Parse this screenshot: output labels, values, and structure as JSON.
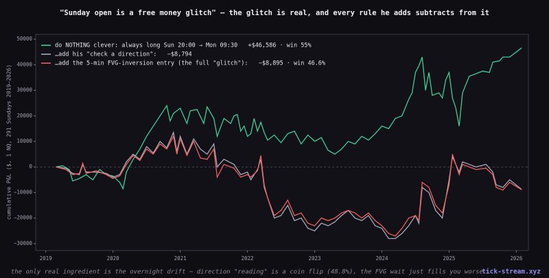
{
  "chart_data": {
    "type": "line",
    "title": "\"Sunday open is a free money glitch\" — the glitch is real, and every rule he adds subtracts from it",
    "ylabel": "cumulative P&L ($, 1 NQ, 291 Sundays 2019–2026)",
    "caption": "the only real ingredient is the overnight drift — direction \"reading\" is a coin flip (48.8%), the FVG wait just fills you worse",
    "brand": "tick-stream.xyz",
    "xlim": [
      2018.85,
      2026.18
    ],
    "xticks": [
      2019,
      2020,
      2021,
      2022,
      2023,
      2024,
      2025,
      2026
    ],
    "ylim": [
      -32700,
      51900
    ],
    "yticks": [
      {
        "value": -30000,
        "label": "−30000"
      },
      {
        "value": -20000,
        "label": "−20000"
      },
      {
        "value": -10000,
        "label": "−10000"
      },
      0,
      10000,
      20000,
      30000,
      40000,
      50000
    ],
    "legend": "upper left",
    "series": [
      {
        "name": "do NOTHING clever: always long Sun 20:00 → Mon 09:30   +$46,586 · win 55%",
        "color": "#3ecf95",
        "x": [
          2019.15,
          2019.25,
          2019.35,
          2019.4,
          2019.5,
          2019.6,
          2019.7,
          2019.8,
          2019.9,
          2020.0,
          2020.1,
          2020.15,
          2020.2,
          2020.3,
          2020.4,
          2020.5,
          2020.6,
          2020.7,
          2020.8,
          2020.85,
          2020.9,
          2021.0,
          2021.1,
          2021.15,
          2021.25,
          2021.35,
          2021.4,
          2021.5,
          2021.55,
          2021.65,
          2021.75,
          2021.8,
          2021.85,
          2021.9,
          2021.95,
          2022.0,
          2022.05,
          2022.1,
          2022.15,
          2022.2,
          2022.25,
          2022.3,
          2022.4,
          2022.5,
          2022.6,
          2022.7,
          2022.8,
          2022.9,
          2023.0,
          2023.1,
          2023.2,
          2023.3,
          2023.4,
          2023.5,
          2023.6,
          2023.7,
          2023.8,
          2023.9,
          2024.0,
          2024.1,
          2024.2,
          2024.3,
          2024.4,
          2024.45,
          2024.5,
          2024.55,
          2024.6,
          2024.65,
          2024.7,
          2024.75,
          2024.85,
          2024.9,
          2024.95,
          2025.0,
          2025.05,
          2025.1,
          2025.15,
          2025.2,
          2025.3,
          2025.5,
          2025.6,
          2025.65,
          2025.75,
          2025.8,
          2025.9,
          2026.0,
          2026.08
        ],
        "values": [
          0,
          500,
          -1000,
          -5500,
          -4500,
          -3000,
          -5000,
          -1000,
          -3000,
          -3500,
          -6000,
          -8500,
          -2000,
          3000,
          7000,
          12000,
          16000,
          20000,
          24000,
          18000,
          21000,
          23000,
          17000,
          22000,
          22500,
          17000,
          23500,
          19000,
          12000,
          19000,
          17000,
          20000,
          20500,
          14000,
          16000,
          12000,
          13000,
          19000,
          14000,
          17500,
          13500,
          10500,
          12500,
          9500,
          13000,
          14000,
          9000,
          12500,
          10000,
          11500,
          6500,
          5000,
          7000,
          10000,
          9000,
          12000,
          10500,
          13000,
          16000,
          15000,
          19000,
          20000,
          26500,
          29000,
          37000,
          39500,
          43000,
          30000,
          37000,
          28000,
          29000,
          27000,
          34000,
          37000,
          27000,
          23000,
          16000,
          29000,
          35500,
          37500,
          37000,
          41000,
          41500,
          43000,
          43000,
          45000,
          46600
        ]
      },
      {
        "name": "…add his \"check a direction\":   −$8,794",
        "color": "#a9a9bd",
        "x": [
          2019.15,
          2019.3,
          2019.4,
          2019.5,
          2019.55,
          2019.6,
          2019.75,
          2019.9,
          2020.0,
          2020.1,
          2020.2,
          2020.3,
          2020.4,
          2020.5,
          2020.6,
          2020.7,
          2020.8,
          2020.9,
          2020.95,
          2021.0,
          2021.1,
          2021.2,
          2021.3,
          2021.4,
          2021.5,
          2021.55,
          2021.65,
          2021.8,
          2021.9,
          2022.0,
          2022.05,
          2022.15,
          2022.2,
          2022.25,
          2022.3,
          2022.4,
          2022.5,
          2022.6,
          2022.7,
          2022.8,
          2022.9,
          2023.0,
          2023.1,
          2023.2,
          2023.3,
          2023.4,
          2023.5,
          2023.6,
          2023.7,
          2023.8,
          2023.9,
          2024.0,
          2024.1,
          2024.2,
          2024.3,
          2024.4,
          2024.5,
          2024.55,
          2024.6,
          2024.7,
          2024.8,
          2024.9,
          2025.0,
          2025.05,
          2025.15,
          2025.2,
          2025.4,
          2025.55,
          2025.65,
          2025.7,
          2025.8,
          2025.9,
          2026.08
        ],
        "values": [
          0,
          -500,
          -2500,
          -3000,
          1000,
          -2000,
          -2000,
          -2500,
          -4000,
          -3000,
          2000,
          5000,
          3000,
          8000,
          5500,
          10000,
          7500,
          13500,
          6000,
          12000,
          5000,
          11000,
          7000,
          5000,
          9000,
          0,
          3000,
          1000,
          -3000,
          -2000,
          -5000,
          -1000,
          3000,
          -8000,
          -12000,
          -20000,
          -19000,
          -15000,
          -21000,
          -20000,
          -24000,
          -25000,
          -22000,
          -23000,
          -21500,
          -19000,
          -17000,
          -20000,
          -21000,
          -19000,
          -23000,
          -24000,
          -28000,
          -28000,
          -26000,
          -23000,
          -19000,
          -22000,
          -8000,
          -10000,
          -17000,
          -20000,
          -5000,
          4000,
          -2000,
          2000,
          0,
          1000,
          -2000,
          -7000,
          -8000,
          -5000,
          -8800
        ]
      },
      {
        "name": "…add the 5-min FVG-inversion entry (the full \"glitch\"):   −$8,895 · win 46.6%",
        "color": "#f0605c",
        "x": [
          2019.15,
          2019.3,
          2019.4,
          2019.5,
          2019.55,
          2019.6,
          2019.75,
          2019.9,
          2020.0,
          2020.1,
          2020.2,
          2020.3,
          2020.4,
          2020.5,
          2020.6,
          2020.7,
          2020.8,
          2020.9,
          2020.95,
          2021.0,
          2021.1,
          2021.2,
          2021.3,
          2021.4,
          2021.5,
          2021.55,
          2021.65,
          2021.8,
          2021.9,
          2022.0,
          2022.05,
          2022.15,
          2022.2,
          2022.25,
          2022.3,
          2022.4,
          2022.5,
          2022.6,
          2022.7,
          2022.8,
          2022.9,
          2023.0,
          2023.1,
          2023.2,
          2023.3,
          2023.4,
          2023.5,
          2023.6,
          2023.7,
          2023.8,
          2023.9,
          2024.0,
          2024.1,
          2024.2,
          2024.3,
          2024.4,
          2024.5,
          2024.55,
          2024.6,
          2024.7,
          2024.8,
          2024.9,
          2025.0,
          2025.05,
          2025.15,
          2025.2,
          2025.4,
          2025.55,
          2025.65,
          2025.7,
          2025.8,
          2025.9,
          2026.08
        ],
        "values": [
          0,
          -1000,
          -3000,
          -2500,
          1500,
          -2500,
          -1500,
          -3000,
          -4500,
          -3500,
          1000,
          4500,
          2500,
          7000,
          5000,
          9000,
          7000,
          12000,
          5000,
          11000,
          4500,
          10000,
          3500,
          3000,
          7000,
          -4000,
          1000,
          -500,
          -4000,
          -3000,
          -4000,
          -1500,
          4500,
          -7000,
          -12000,
          -19000,
          -17000,
          -13000,
          -19000,
          -18000,
          -22000,
          -23000,
          -20000,
          -21000,
          -20000,
          -18000,
          -17000,
          -18000,
          -20000,
          -18000,
          -21000,
          -23000,
          -26000,
          -27000,
          -24000,
          -20000,
          -19000,
          -21000,
          -6000,
          -8000,
          -15000,
          -18000,
          -7000,
          5000,
          -3000,
          1000,
          -1000,
          -500,
          -3000,
          -8000,
          -9000,
          -6000,
          -8900
        ]
      }
    ]
  }
}
